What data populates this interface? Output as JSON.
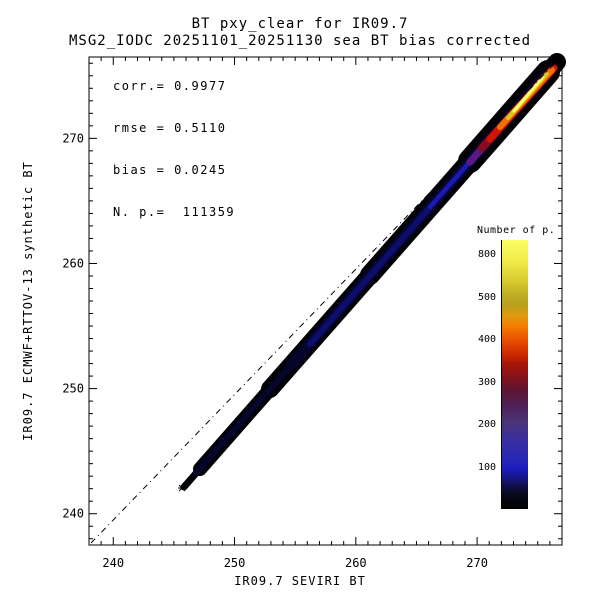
{
  "title": {
    "line1": "BT pxy_clear for IR09.7",
    "line2": "MSG2_IODC 20251101_20251130 sea BT bias corrected"
  },
  "stats": {
    "corr_line": "corr.= 0.9977",
    "rmse_line": "rmse = 0.5110",
    "bias_line": "bias = 0.0245",
    "npoints_line": "N. p.=  111359"
  },
  "axes": {
    "x_label": "IR09.7 SEVIRI BT",
    "y_label": "IR09.7 ECMWF+RTTOV-13 synthetic BT",
    "x_ticks": [
      240,
      250,
      260,
      270
    ],
    "y_ticks": [
      240,
      250,
      260,
      270
    ],
    "x_range": [
      238,
      277
    ],
    "y_range": [
      237.5,
      276.5
    ]
  },
  "colorbar": {
    "title": "Number of p.",
    "tick_labels_top_to_bottom": [
      "800",
      "500",
      "400",
      "300",
      "200",
      "100"
    ]
  },
  "chart_data": {
    "type": "scatter",
    "subtype": "2d-density-histogram",
    "title": "BT pxy_clear for IR09.7",
    "subtitle": "MSG2_IODC 20251101_20251130 sea BT bias corrected",
    "xlabel": "IR09.7 SEVIRI BT",
    "ylabel": "IR09.7 ECMWF+RTTOV-13 synthetic BT",
    "xlim": [
      238,
      277
    ],
    "ylim": [
      237.5,
      276.5
    ],
    "x_ticks": [
      240,
      250,
      260,
      270
    ],
    "y_ticks": [
      240,
      250,
      260,
      270
    ],
    "grid": false,
    "stats": {
      "corr": 0.9977,
      "rmse": 0.511,
      "bias": 0.0245,
      "n_points": 111359
    },
    "reference_line": {
      "type": "identity y=x",
      "style": "dash-dot black"
    },
    "distribution_summary": "Narrow dense band along y=x from about (246,243) to (277,277); marker cluster tip with star symbol near (246,243); density rises toward warm BT, outer bins ~0-100 (black/dark blue), core ~100-300 (blue/purple), hotspot near (274.5,275) reaching ~800 points per bin (red-orange-yellow core)",
    "colorbar": {
      "label": "Number of p.",
      "tick_values_top_to_bottom": [
        800,
        500,
        400,
        300,
        200,
        100
      ],
      "gradient_bottom_to_top": [
        "black",
        "dark blue",
        "blue",
        "purple",
        "dark red",
        "red",
        "orange",
        "olive",
        "yellow"
      ]
    }
  }
}
